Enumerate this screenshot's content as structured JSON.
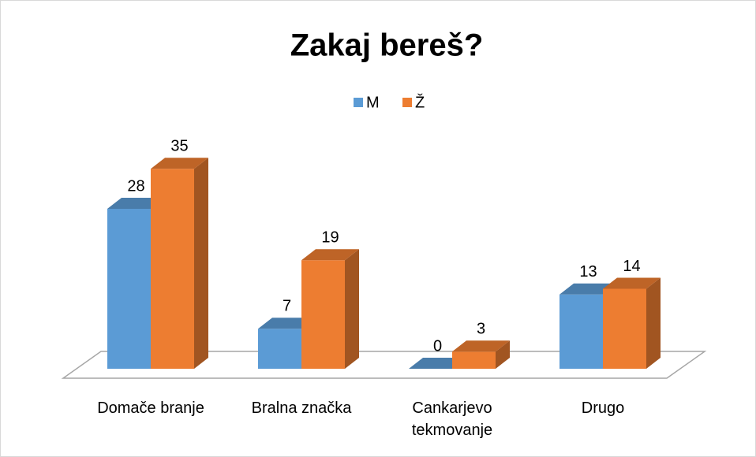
{
  "chart_data": {
    "type": "bar3d",
    "title": "Zakaj bereš?",
    "categories": [
      "Domače branje",
      "Bralna značka",
      "Cankarjevo tekmovanje",
      "Drugo"
    ],
    "series": [
      {
        "name": "M",
        "color": "#5b9bd5",
        "values": [
          28,
          7,
          0,
          13
        ]
      },
      {
        "name": "Ž",
        "color": "#ed7d31",
        "values": [
          35,
          19,
          3,
          14
        ]
      }
    ],
    "legend": "top"
  }
}
